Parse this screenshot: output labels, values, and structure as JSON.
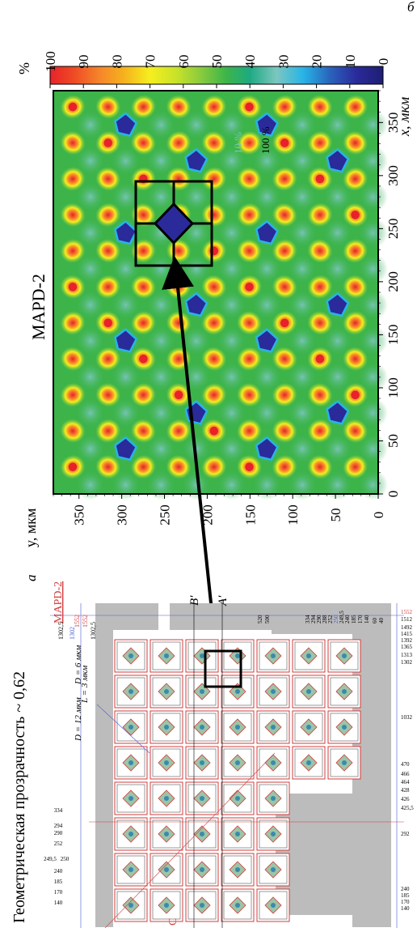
{
  "panel_a": {
    "letter": "а",
    "title": "Геометрическая прозрачность ~ 0,62",
    "device": "MAPD-2",
    "label_L": "L = 3 мкм",
    "label_D6": "D = 6 мкм",
    "label_D12": "D = 12 мкм",
    "section_A": "A′",
    "section_B": "B′",
    "section_C": "C",
    "dims_top": [
      "1552",
      "1552",
      "1302,5",
      "1302",
      "1302,5"
    ],
    "dims_right": [
      "520",
      "500",
      "334",
      "294",
      "290",
      "288",
      "252",
      "250",
      "249,5",
      "240",
      "185",
      "170",
      "140",
      "60",
      "40"
    ],
    "dims_bottom_right": [
      "1552",
      "1512",
      "1492",
      "1415",
      "1392",
      "1365",
      "1313",
      "1302",
      "1032",
      "470",
      "466",
      "464",
      "428",
      "426",
      "425,5",
      "292",
      "240",
      "185",
      "170",
      "140"
    ],
    "dims_left": [
      "334",
      "294",
      "290",
      "252",
      "249,5",
      "250",
      "240",
      "185",
      "170",
      "140"
    ],
    "colors": {
      "frame_gray": "#bcbcbc",
      "line_red": "#d23c3c",
      "line_blue": "#4a5ccf",
      "pad_green": "#9cc4a6"
    }
  },
  "panel_b": {
    "letter": "б",
    "title": "MAPD-2",
    "x_axis_label": "x, мкм",
    "y_axis_label": "y, мкм",
    "colorbar_unit": "%",
    "colorbar_ticks": [
      "100",
      "90",
      "80",
      "70",
      "60",
      "50",
      "40",
      "30",
      "20",
      "10",
      "0"
    ],
    "annot_10": "10 %",
    "annot_100": "100 %"
  },
  "chart_data": {
    "type": "heatmap",
    "title": "MAPD-2",
    "xlabel": "x, мкм",
    "ylabel": "y, мкм",
    "xlim": [
      0,
      380
    ],
    "ylim": [
      0,
      380
    ],
    "x_ticks": [
      0,
      50,
      100,
      150,
      200,
      250,
      300,
      350
    ],
    "y_ticks": [
      0,
      50,
      100,
      150,
      200,
      250,
      300,
      350
    ],
    "value_unit": "%",
    "value_range": [
      0,
      100
    ],
    "colorbar_colors": [
      "#e8222a",
      "#ee4a24",
      "#f6862a",
      "#f6b01e",
      "#f6ee1e",
      "#c8e22a",
      "#8ccc3c",
      "#3cb44a",
      "#1eaa82",
      "#7cc6c0",
      "#28b4e6",
      "#2a64bc",
      "#2a2a9a",
      "#1e1e74"
    ],
    "cell_pitch_um": 41,
    "annotations": [
      {
        "text": "10 %",
        "x": 335,
        "y": 300
      },
      {
        "text": "100 %",
        "x": 325,
        "y": 300
      }
    ]
  }
}
